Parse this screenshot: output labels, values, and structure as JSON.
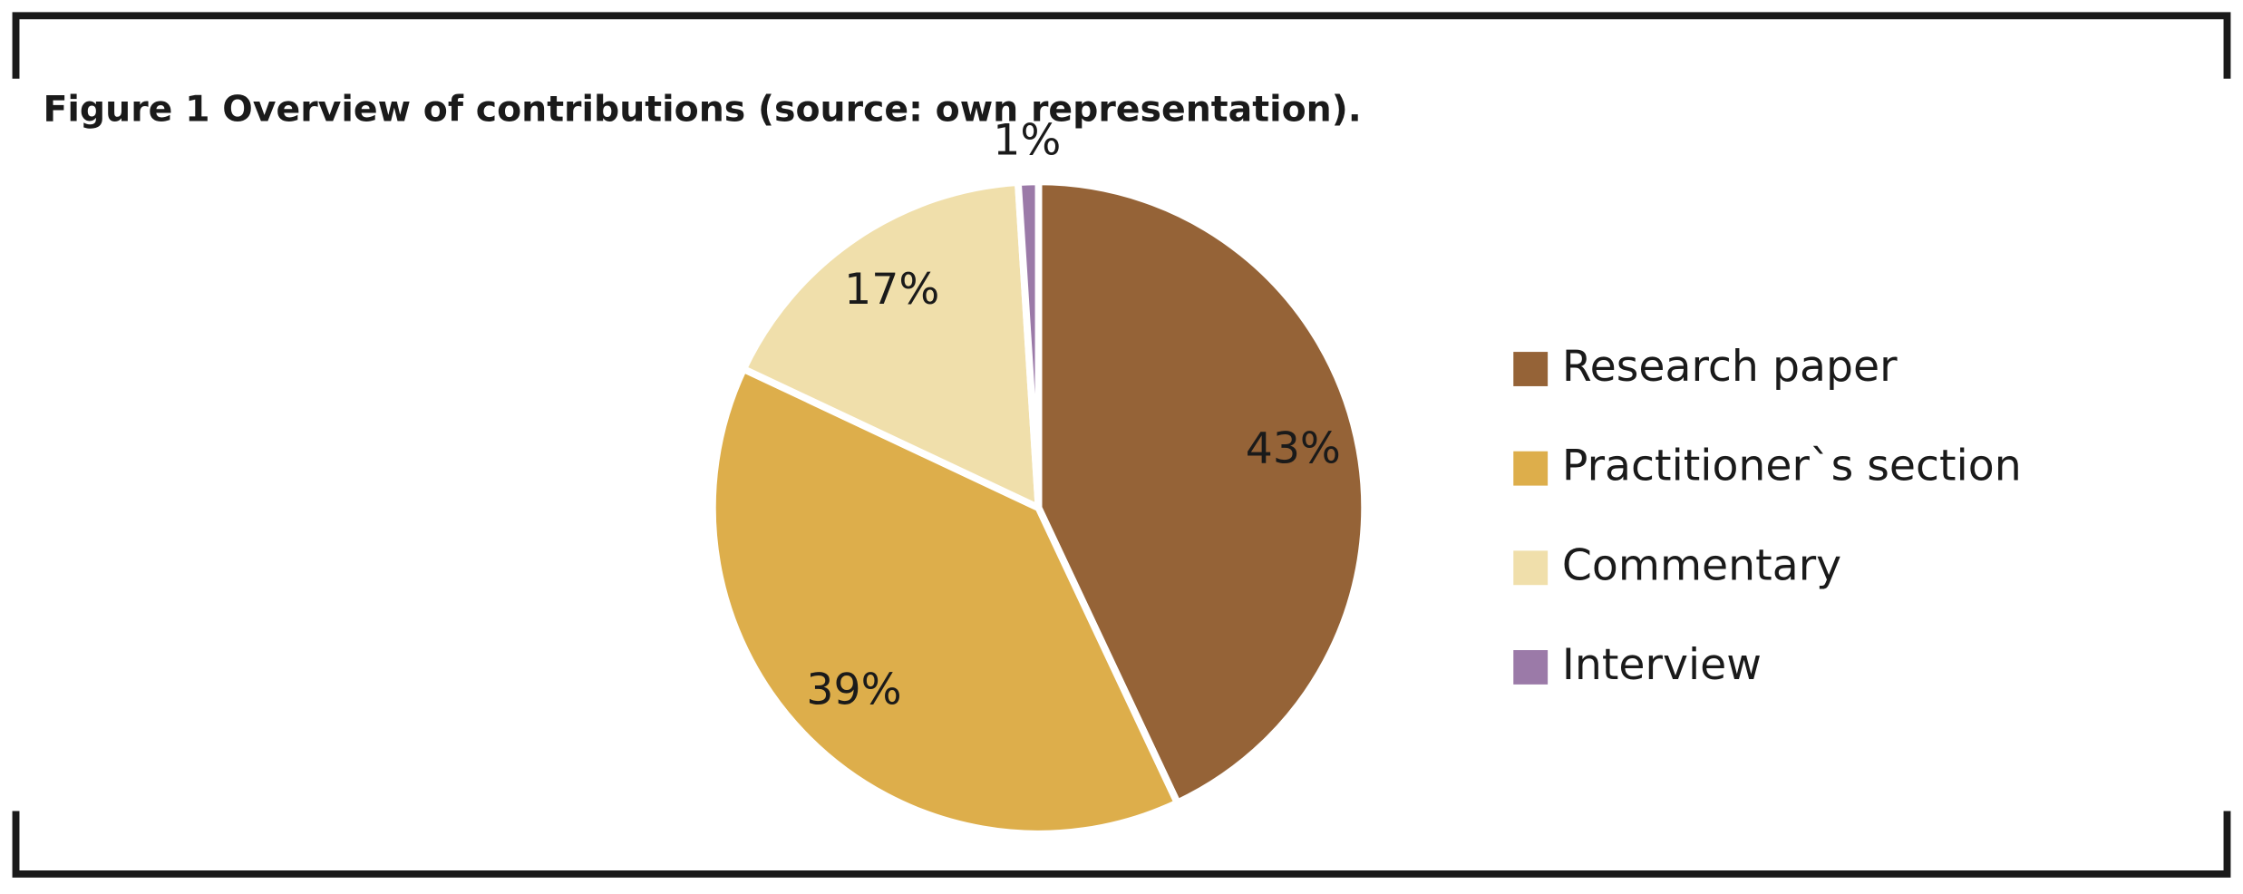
{
  "chart_data": {
    "type": "pie",
    "title": "Figure 1 Overview of contributions (source: own representation).",
    "categories": [
      "Research paper",
      "Practitioner`s section",
      "Commentary",
      "Interview"
    ],
    "values": [
      43,
      39,
      17,
      1
    ],
    "value_labels": [
      "43%",
      "39%",
      "17%",
      "1%"
    ],
    "colors": [
      "#956337",
      "#ddae4b",
      "#f0dfab",
      "#9b7aa8"
    ],
    "legend": "right"
  }
}
